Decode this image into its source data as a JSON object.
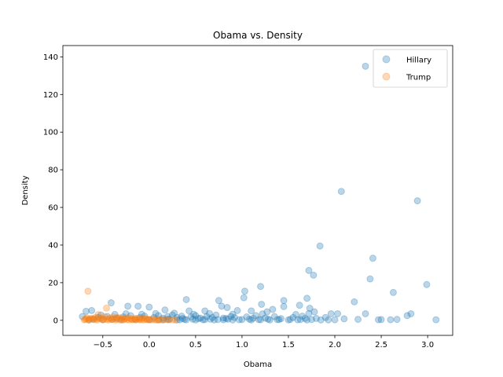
{
  "chart_data": {
    "type": "scatter",
    "title": "Obama vs. Density",
    "xlabel": "Obama",
    "ylabel": "Density",
    "xlim": [
      -0.93,
      3.27
    ],
    "ylim": [
      -8,
      146
    ],
    "xticks": [
      -0.5,
      0.0,
      0.5,
      1.0,
      1.5,
      2.0,
      2.5,
      3.0
    ],
    "xtick_labels": [
      "−0.5",
      "0.0",
      "0.5",
      "1.0",
      "1.5",
      "2.0",
      "2.5",
      "3.0"
    ],
    "yticks": [
      0,
      20,
      40,
      60,
      80,
      100,
      120,
      140
    ],
    "ytick_labels": [
      "0",
      "20",
      "40",
      "60",
      "80",
      "100",
      "120",
      "140"
    ],
    "grid": false,
    "legend_position": "top-right",
    "series": [
      {
        "name": "Hillary",
        "color": "#1f77b4",
        "alpha": 0.3,
        "points": [
          [
            2.33,
            135
          ],
          [
            2.07,
            68.5
          ],
          [
            2.89,
            63.5
          ],
          [
            1.84,
            39.5
          ],
          [
            2.41,
            33
          ],
          [
            1.72,
            26.5
          ],
          [
            1.77,
            24
          ],
          [
            2.38,
            22
          ],
          [
            2.99,
            19
          ],
          [
            1.2,
            18
          ],
          [
            1.03,
            15.5
          ],
          [
            2.63,
            14.8
          ],
          [
            0.4,
            11
          ],
          [
            1.02,
            12
          ],
          [
            1.7,
            11.7
          ],
          [
            0.75,
            10.5
          ],
          [
            1.45,
            10.5
          ],
          [
            -0.41,
            9.3
          ],
          [
            1.21,
            8.5
          ],
          [
            2.21,
            9.8
          ],
          [
            1.62,
            8
          ],
          [
            -0.23,
            7.5
          ],
          [
            -0.12,
            7.5
          ],
          [
            0.0,
            7
          ],
          [
            0.84,
            6.8
          ],
          [
            1.45,
            7.3
          ],
          [
            0.78,
            7.5
          ],
          [
            1.73,
            6.4
          ],
          [
            1.33,
            5.8
          ],
          [
            2.33,
            3.5
          ],
          [
            -0.68,
            4.8
          ],
          [
            -0.62,
            5.2
          ],
          [
            0.17,
            5.5
          ],
          [
            0.43,
            5
          ],
          [
            0.6,
            5
          ],
          [
            0.95,
            5.2
          ],
          [
            1.1,
            5
          ],
          [
            1.27,
            4.5
          ],
          [
            1.78,
            4.5
          ],
          [
            1.96,
            3.5
          ],
          [
            2.03,
            3.5
          ],
          [
            2.78,
            2.5
          ],
          [
            2.82,
            3.5
          ],
          [
            -0.72,
            2
          ],
          [
            -0.55,
            1.5
          ],
          [
            -0.45,
            2
          ],
          [
            -0.35,
            1.2
          ],
          [
            -0.28,
            1.8
          ],
          [
            -0.2,
            2.5
          ],
          [
            -0.1,
            1.5
          ],
          [
            -0.05,
            2.2
          ],
          [
            0.05,
            1.5
          ],
          [
            0.1,
            2.5
          ],
          [
            0.15,
            1.2
          ],
          [
            0.2,
            2
          ],
          [
            0.25,
            2.8
          ],
          [
            0.3,
            1.5
          ],
          [
            0.35,
            2.2
          ],
          [
            0.45,
            1.8
          ],
          [
            0.5,
            2.5
          ],
          [
            0.55,
            1.2
          ],
          [
            0.62,
            2
          ],
          [
            0.68,
            1.5
          ],
          [
            0.72,
            2.8
          ],
          [
            0.8,
            1.2
          ],
          [
            0.88,
            2
          ],
          [
            0.92,
            1.5
          ],
          [
            1.05,
            1.8
          ],
          [
            1.15,
            2.5
          ],
          [
            1.25,
            1.2
          ],
          [
            1.35,
            2
          ],
          [
            1.55,
            1.5
          ],
          [
            1.65,
            2.2
          ],
          [
            1.8,
            1
          ],
          [
            1.9,
            1.5
          ],
          [
            2.1,
            0.8
          ],
          [
            2.25,
            0.5
          ],
          [
            2.47,
            0.3
          ],
          [
            2.5,
            0.4
          ],
          [
            2.6,
            0.3
          ],
          [
            2.67,
            0.5
          ],
          [
            3.09,
            0.3
          ],
          [
            1.93,
            0.2
          ],
          [
            2.0,
            0.3
          ],
          [
            -0.65,
            0.2
          ],
          [
            -0.6,
            0.6
          ],
          [
            -0.5,
            0.3
          ],
          [
            -0.4,
            0.5
          ],
          [
            -0.3,
            0.2
          ],
          [
            -0.15,
            0.4
          ],
          [
            0.0,
            0.3
          ],
          [
            0.1,
            0.2
          ],
          [
            0.2,
            0.5
          ],
          [
            0.3,
            0.2
          ],
          [
            0.4,
            0.3
          ],
          [
            0.5,
            0.2
          ],
          [
            0.6,
            0.4
          ],
          [
            0.7,
            0.2
          ],
          [
            0.8,
            0.3
          ],
          [
            0.9,
            0.2
          ],
          [
            1.0,
            0.4
          ],
          [
            1.1,
            0.2
          ],
          [
            1.2,
            0.3
          ],
          [
            1.3,
            0.2
          ],
          [
            1.4,
            0.4
          ],
          [
            1.5,
            0.2
          ],
          [
            1.6,
            0.3
          ],
          [
            1.7,
            0.2
          ],
          [
            1.75,
            0.4
          ],
          [
            1.85,
            0.2
          ],
          [
            0.15,
            0.3
          ],
          [
            0.22,
            0.6
          ],
          [
            0.33,
            0.3
          ],
          [
            0.38,
            0.5
          ],
          [
            0.47,
            0.6
          ],
          [
            0.58,
            0.3
          ],
          [
            0.66,
            0.6
          ],
          [
            0.74,
            0.4
          ],
          [
            0.85,
            0.6
          ],
          [
            0.97,
            0.3
          ],
          [
            1.08,
            0.6
          ],
          [
            1.18,
            0.4
          ],
          [
            1.28,
            0.6
          ],
          [
            1.38,
            0.4
          ],
          [
            1.52,
            0.5
          ],
          [
            1.63,
            0.4
          ],
          [
            -0.25,
            3.5
          ],
          [
            -0.08,
            3.2
          ],
          [
            0.27,
            3.8
          ],
          [
            0.48,
            3.2
          ],
          [
            0.65,
            3.6
          ],
          [
            0.9,
            3.2
          ],
          [
            1.22,
            3.4
          ],
          [
            1.58,
            3.1
          ],
          [
            1.72,
            3.6
          ],
          [
            0.36,
            1
          ],
          [
            0.53,
            0.9
          ],
          [
            0.83,
            1
          ],
          [
            1.12,
            1.1
          ],
          [
            1.42,
            0.9
          ],
          [
            1.68,
            1
          ],
          [
            -0.52,
            2.8
          ],
          [
            -0.37,
            3.1
          ],
          [
            0.07,
            3.6
          ]
        ]
      },
      {
        "name": "Trump",
        "color": "#ff7f0e",
        "alpha": 0.3,
        "points": [
          [
            -0.66,
            15.5
          ],
          [
            -0.46,
            6.5
          ],
          [
            -0.55,
            3
          ],
          [
            -0.7,
            0.3
          ],
          [
            -0.68,
            0.8
          ],
          [
            -0.65,
            0.2
          ],
          [
            -0.63,
            1
          ],
          [
            -0.6,
            0.4
          ],
          [
            -0.58,
            1.5
          ],
          [
            -0.56,
            0.2
          ],
          [
            -0.53,
            0.8
          ],
          [
            -0.5,
            0.3
          ],
          [
            -0.48,
            2
          ],
          [
            -0.46,
            0.5
          ],
          [
            -0.44,
            0.2
          ],
          [
            -0.42,
            1.2
          ],
          [
            -0.4,
            0.4
          ],
          [
            -0.38,
            0.8
          ],
          [
            -0.36,
            0.2
          ],
          [
            -0.34,
            1.5
          ],
          [
            -0.32,
            0.3
          ],
          [
            -0.3,
            0.7
          ],
          [
            -0.28,
            0.2
          ],
          [
            -0.26,
            1.1
          ],
          [
            -0.24,
            0.4
          ],
          [
            -0.22,
            0.2
          ],
          [
            -0.2,
            0.9
          ],
          [
            -0.18,
            0.3
          ],
          [
            -0.16,
            0.6
          ],
          [
            -0.14,
            0.2
          ],
          [
            -0.12,
            1
          ],
          [
            -0.1,
            0.3
          ],
          [
            -0.08,
            0.5
          ],
          [
            -0.06,
            0.2
          ],
          [
            -0.04,
            0.8
          ],
          [
            -0.02,
            0.3
          ],
          [
            0.0,
            0.5
          ],
          [
            0.02,
            0.2
          ],
          [
            0.04,
            0.6
          ],
          [
            0.06,
            0.3
          ],
          [
            0.08,
            0.2
          ],
          [
            0.1,
            0.5
          ],
          [
            0.12,
            0.3
          ],
          [
            0.15,
            0.2
          ],
          [
            0.18,
            0.4
          ],
          [
            0.21,
            0.2
          ],
          [
            0.25,
            0.3
          ],
          [
            0.28,
            0.2
          ],
          [
            -0.69,
            0.5
          ],
          [
            -0.67,
            1.3
          ],
          [
            -0.64,
            0.6
          ],
          [
            -0.61,
            0.9
          ],
          [
            -0.57,
            0.6
          ],
          [
            -0.52,
            1.2
          ],
          [
            -0.49,
            0.6
          ],
          [
            -0.43,
            0.7
          ],
          [
            -0.39,
            1.8
          ],
          [
            -0.35,
            0.6
          ],
          [
            -0.31,
            1.3
          ],
          [
            -0.27,
            0.6
          ],
          [
            -0.23,
            1.4
          ],
          [
            -0.19,
            0.5
          ],
          [
            -0.15,
            1.1
          ],
          [
            -0.11,
            0.6
          ],
          [
            -0.07,
            1.2
          ],
          [
            -0.03,
            0.6
          ]
        ]
      }
    ]
  }
}
